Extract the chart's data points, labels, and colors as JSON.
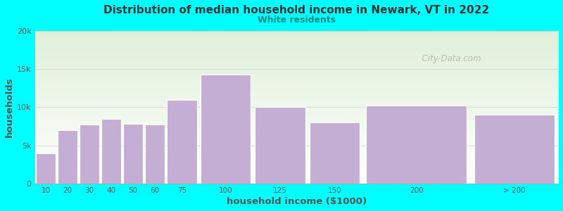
{
  "title": "Distribution of median household income in Newark, VT in 2022",
  "subtitle": "White residents",
  "xlabel": "household income ($1000)",
  "ylabel": "households",
  "background_color": "#00FFFF",
  "plot_bg_gradient_top": "#dff0d8",
  "plot_bg_gradient_bottom": "#ffffff",
  "bar_color": "#c5aed4",
  "bar_edge_color": "#ffffff",
  "title_color": "#333333",
  "subtitle_color": "#008888",
  "axis_label_color": "#555555",
  "tick_label_color": "#555555",
  "watermark_text": "  City-Data.com",
  "categories": [
    "10",
    "20",
    "30",
    "40",
    "50",
    "60",
    "75",
    "100",
    "125",
    "150",
    "200",
    "> 200"
  ],
  "left_edges": [
    0,
    10,
    20,
    30,
    40,
    50,
    60,
    75,
    100,
    125,
    150,
    200
  ],
  "right_edges": [
    10,
    20,
    30,
    40,
    50,
    60,
    75,
    100,
    125,
    150,
    200,
    240
  ],
  "values": [
    4000,
    7000,
    7700,
    8500,
    7800,
    7700,
    11000,
    14300,
    10000,
    8000,
    10200,
    9000
  ],
  "ylim": [
    0,
    20000
  ],
  "yticks": [
    0,
    5000,
    10000,
    15000,
    20000
  ],
  "ytick_labels": [
    "0",
    "5k",
    "10k",
    "15k",
    "20k"
  ]
}
